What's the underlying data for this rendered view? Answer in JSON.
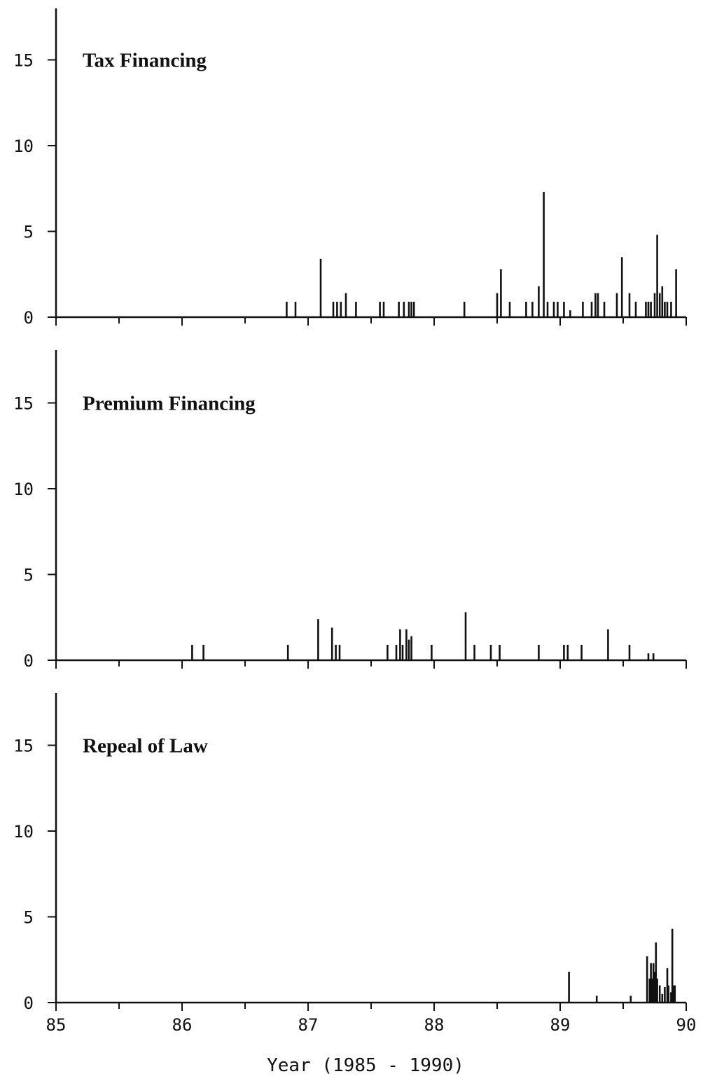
{
  "chart_data": [
    {
      "type": "line",
      "title": "Tax Financing",
      "ylim": [
        0,
        18
      ],
      "yticks": [
        0,
        5,
        10,
        15
      ],
      "xlim": [
        85,
        90
      ],
      "xticks": [
        85,
        86,
        87,
        88,
        89,
        90
      ],
      "x": [
        86.83,
        86.9,
        87.1,
        87.2,
        87.23,
        87.26,
        87.3,
        87.38,
        87.57,
        87.6,
        87.72,
        87.76,
        87.8,
        87.82,
        87.84,
        88.24,
        88.5,
        88.53,
        88.6,
        88.73,
        88.78,
        88.83,
        88.87,
        88.9,
        88.95,
        88.98,
        89.03,
        89.08,
        89.18,
        89.25,
        89.28,
        89.3,
        89.35,
        89.45,
        89.49,
        89.55,
        89.6,
        89.68,
        89.7,
        89.72,
        89.75,
        89.77,
        89.79,
        89.81,
        89.83,
        89.85,
        89.88,
        89.92
      ],
      "y": [
        0.9,
        0.9,
        3.4,
        0.9,
        0.9,
        0.9,
        1.4,
        0.9,
        0.9,
        0.9,
        0.9,
        0.9,
        0.9,
        0.9,
        0.9,
        0.9,
        1.4,
        2.8,
        0.9,
        0.9,
        0.9,
        1.8,
        7.3,
        0.9,
        0.9,
        0.9,
        0.9,
        0.4,
        0.9,
        0.9,
        1.4,
        1.4,
        0.9,
        1.4,
        3.5,
        1.4,
        0.9,
        0.9,
        0.9,
        0.9,
        1.4,
        4.8,
        1.4,
        1.8,
        0.9,
        0.9,
        0.9,
        2.8
      ]
    },
    {
      "type": "line",
      "title": "Premium Financing",
      "ylim": [
        0,
        18
      ],
      "yticks": [
        0,
        5,
        10,
        15
      ],
      "xlim": [
        85,
        90
      ],
      "xticks": [
        85,
        86,
        87,
        88,
        89,
        90
      ],
      "x": [
        86.08,
        86.17,
        86.84,
        87.08,
        87.19,
        87.22,
        87.25,
        87.63,
        87.7,
        87.73,
        87.75,
        87.78,
        87.8,
        87.82,
        87.98,
        88.25,
        88.32,
        88.45,
        88.52,
        88.83,
        89.03,
        89.06,
        89.17,
        89.38,
        89.55,
        89.7,
        89.74
      ],
      "y": [
        0.9,
        0.9,
        0.9,
        2.4,
        1.9,
        0.9,
        0.9,
        0.9,
        0.9,
        1.8,
        0.9,
        1.8,
        1.2,
        1.4,
        0.9,
        2.8,
        0.9,
        0.9,
        0.9,
        0.9,
        0.9,
        0.9,
        0.9,
        1.8,
        0.9,
        0.4,
        0.4
      ]
    },
    {
      "type": "line",
      "title": "Repeal of Law",
      "ylim": [
        0,
        18
      ],
      "yticks": [
        0,
        5,
        10,
        15
      ],
      "xlim": [
        85,
        90
      ],
      "xticks": [
        85,
        86,
        87,
        88,
        89,
        90
      ],
      "x": [
        89.07,
        89.29,
        89.56,
        89.69,
        89.71,
        89.72,
        89.73,
        89.74,
        89.75,
        89.76,
        89.77,
        89.79,
        89.81,
        89.83,
        89.85,
        89.86,
        89.88,
        89.89,
        89.9,
        89.91
      ],
      "y": [
        1.8,
        0.4,
        0.4,
        2.7,
        1.4,
        2.3,
        1.4,
        2.3,
        1.8,
        3.5,
        1.4,
        1.0,
        0.5,
        0.9,
        2.0,
        1.0,
        0.6,
        4.3,
        1.0,
        1.0
      ]
    }
  ],
  "xlabel": "Year  (1985 - 1990)"
}
